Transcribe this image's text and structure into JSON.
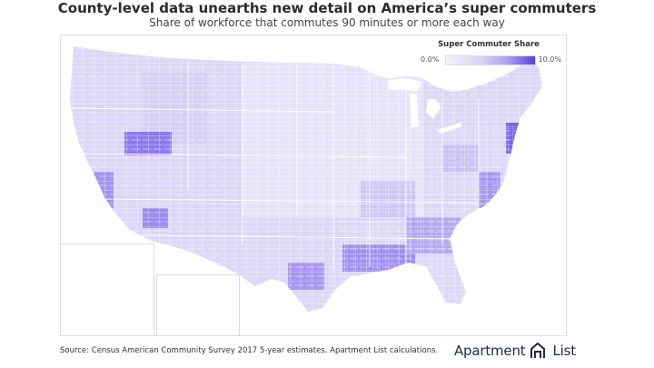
{
  "header": {
    "title": "County-level data unearths new detail on America’s super commuters",
    "subtitle": "Share of workforce that commutes 90 minutes or more each way"
  },
  "legend": {
    "title": "Super Commuter Share",
    "min_label": "0.0%",
    "max_label": "10.0%",
    "min_value": 0.0,
    "max_value": 10.0,
    "low_color": "#f4f2fb",
    "high_color": "#5a3fe0"
  },
  "footer": {
    "source": "Source: Census American Community Survey 2017 5-year estimates. Apartment List calculations."
  },
  "brand": {
    "name_part1": "Apartment",
    "name_part2": "List",
    "icon": "apartment-list-logo-icon",
    "color": "#1f2a44"
  },
  "colors": {
    "land_base": "#dcd7f5",
    "land_light": "#ebe8fa",
    "hotspot": "#7a62ea",
    "hotspot_strong": "#5a3fe0",
    "county_line": "#ffffff",
    "frame": "#e1e1e1"
  }
}
